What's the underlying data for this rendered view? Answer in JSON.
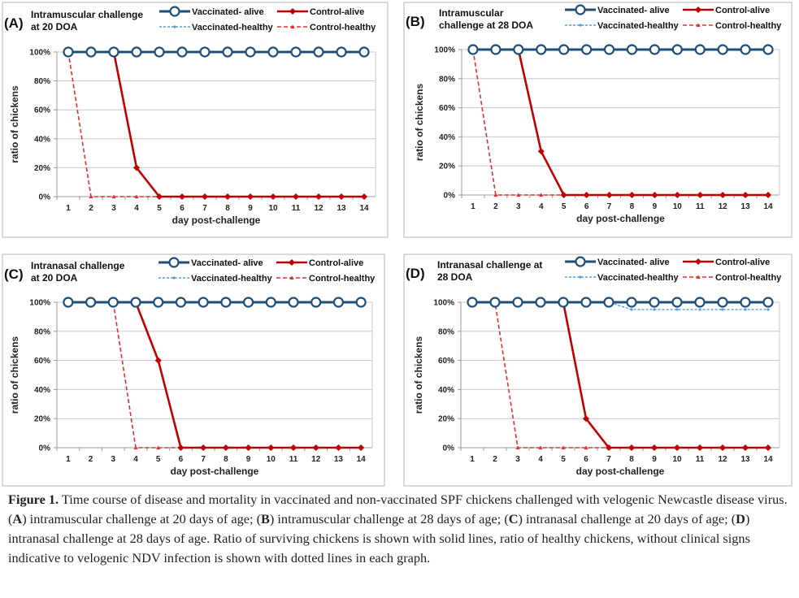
{
  "chart_data": [
    {
      "type": "line",
      "panel_label": "(A)",
      "title_lines": [
        "Intramuscular challenge",
        "at 20 DOA"
      ],
      "xlabel": "day post-challenge",
      "ylabel": "ratio of chickens",
      "x": [
        1,
        2,
        3,
        4,
        5,
        6,
        7,
        8,
        9,
        10,
        11,
        12,
        13,
        14
      ],
      "ylim": [
        0,
        100
      ],
      "yticks": [
        "0%",
        "20%",
        "40%",
        "60%",
        "80%",
        "100%"
      ],
      "legend": [
        "Vaccinated- alive",
        "Control-alive",
        "Vaccinated-healthy",
        "Control-healthy"
      ],
      "series": [
        {
          "name": "Vaccinated- alive",
          "values": [
            100,
            100,
            100,
            100,
            100,
            100,
            100,
            100,
            100,
            100,
            100,
            100,
            100,
            100
          ]
        },
        {
          "name": "Control-alive",
          "values": [
            100,
            100,
            100,
            20,
            0,
            0,
            0,
            0,
            0,
            0,
            0,
            0,
            0,
            0
          ]
        },
        {
          "name": "Vaccinated-healthy",
          "values": [
            100,
            100,
            100,
            100,
            100,
            100,
            100,
            100,
            100,
            100,
            100,
            100,
            100,
            100
          ]
        },
        {
          "name": "Control-healthy",
          "values": [
            100,
            0,
            0,
            0,
            0,
            0,
            0,
            0,
            0,
            0,
            0,
            0,
            0,
            0
          ]
        }
      ]
    },
    {
      "type": "line",
      "panel_label": "(B)",
      "title_lines": [
        "Intramuscular",
        "challenge at 28 DOA"
      ],
      "xlabel": "day post-challenge",
      "ylabel": "ratio of chickens",
      "x": [
        1,
        2,
        3,
        4,
        5,
        6,
        7,
        8,
        9,
        10,
        11,
        12,
        13,
        14
      ],
      "ylim": [
        0,
        100
      ],
      "yticks": [
        "0%",
        "20%",
        "40%",
        "60%",
        "80%",
        "100%"
      ],
      "legend": [
        "Vaccinated- alive",
        "Control-alive",
        "Vaccinated-healthy",
        "Control-healthy"
      ],
      "series": [
        {
          "name": "Vaccinated- alive",
          "values": [
            100,
            100,
            100,
            100,
            100,
            100,
            100,
            100,
            100,
            100,
            100,
            100,
            100,
            100
          ]
        },
        {
          "name": "Control-alive",
          "values": [
            100,
            100,
            100,
            30,
            0,
            0,
            0,
            0,
            0,
            0,
            0,
            0,
            0,
            0
          ]
        },
        {
          "name": "Vaccinated-healthy",
          "values": [
            100,
            100,
            100,
            100,
            100,
            100,
            100,
            100,
            100,
            100,
            100,
            100,
            100,
            100
          ]
        },
        {
          "name": "Control-healthy",
          "values": [
            100,
            0,
            0,
            0,
            0,
            0,
            0,
            0,
            0,
            0,
            0,
            0,
            0,
            0
          ]
        }
      ]
    },
    {
      "type": "line",
      "panel_label": "(C)",
      "title_lines": [
        "Intranasal challenge",
        "at 20 DOA"
      ],
      "xlabel": "day post-challenge",
      "ylabel": "ratio of chickens",
      "x": [
        1,
        2,
        3,
        4,
        5,
        6,
        7,
        8,
        9,
        10,
        11,
        12,
        13,
        14
      ],
      "ylim": [
        0,
        100
      ],
      "yticks": [
        "0%",
        "20%",
        "40%",
        "60%",
        "80%",
        "100%"
      ],
      "legend": [
        "Vaccinated- alive",
        "Control-alive",
        "Vaccinated-healthy",
        "Control-healthy"
      ],
      "series": [
        {
          "name": "Vaccinated- alive",
          "values": [
            100,
            100,
            100,
            100,
            100,
            100,
            100,
            100,
            100,
            100,
            100,
            100,
            100,
            100
          ]
        },
        {
          "name": "Control-alive",
          "values": [
            100,
            100,
            100,
            100,
            60,
            0,
            0,
            0,
            0,
            0,
            0,
            0,
            0,
            0
          ]
        },
        {
          "name": "Vaccinated-healthy",
          "values": [
            100,
            100,
            100,
            100,
            100,
            100,
            100,
            100,
            100,
            100,
            100,
            100,
            100,
            100
          ]
        },
        {
          "name": "Control-healthy",
          "values": [
            100,
            100,
            100,
            0,
            0,
            0,
            0,
            0,
            0,
            0,
            0,
            0,
            0,
            0
          ]
        }
      ]
    },
    {
      "type": "line",
      "panel_label": "(D)",
      "title_lines": [
        "Intranasal challenge at",
        "28 DOA"
      ],
      "xlabel": "day post-challenge",
      "ylabel": "ratio of chickens",
      "x": [
        1,
        2,
        3,
        4,
        5,
        6,
        7,
        8,
        9,
        10,
        11,
        12,
        13,
        14
      ],
      "ylim": [
        0,
        100
      ],
      "yticks": [
        "0%",
        "20%",
        "40%",
        "60%",
        "80%",
        "100%"
      ],
      "legend": [
        "Vaccinated- alive",
        "Control-alive",
        "Vaccinated-healthy",
        "Control-healthy"
      ],
      "series": [
        {
          "name": "Vaccinated- alive",
          "values": [
            100,
            100,
            100,
            100,
            100,
            100,
            100,
            100,
            100,
            100,
            100,
            100,
            100,
            100
          ]
        },
        {
          "name": "Control-alive",
          "values": [
            100,
            100,
            100,
            100,
            100,
            20,
            0,
            0,
            0,
            0,
            0,
            0,
            0,
            0
          ]
        },
        {
          "name": "Vaccinated-healthy",
          "values": [
            100,
            100,
            100,
            100,
            100,
            100,
            100,
            95,
            95,
            95,
            95,
            95,
            95,
            95
          ]
        },
        {
          "name": "Control-healthy",
          "values": [
            100,
            100,
            0,
            0,
            0,
            0,
            0,
            0,
            0,
            0,
            0,
            0,
            0,
            0
          ]
        }
      ]
    }
  ],
  "colors": {
    "vaccinated": "#1f4e79",
    "vaccinated_healthy": "#5b9bd5",
    "control": "#c00000",
    "control_healthy": "#e03030",
    "grid": "#c8c8c8",
    "frame": "#b5b5b5"
  },
  "caption": {
    "lead": "Figure 1.",
    "segments": [
      {
        "text": " Time course of disease and mortality in vaccinated and non-vaccinated SPF chickens challenged with velogenic Newcastle disease virus. (",
        "bold": false
      },
      {
        "text": "A",
        "bold": true
      },
      {
        "text": ") intramuscular challenge at 20 days of age; (",
        "bold": false
      },
      {
        "text": "B",
        "bold": true
      },
      {
        "text": ") intramuscular challenge at 28 days of age; (",
        "bold": false
      },
      {
        "text": "C",
        "bold": true
      },
      {
        "text": ") intranasal challenge at 20 days of age; (",
        "bold": false
      },
      {
        "text": "D",
        "bold": true
      },
      {
        "text": ") intranasal challenge at 28 days of age. Ratio of surviving chickens is shown with solid lines, ratio of healthy chickens, without clinical signs indicative to velogenic NDV infection is shown with dotted lines in each graph.",
        "bold": false
      }
    ]
  }
}
